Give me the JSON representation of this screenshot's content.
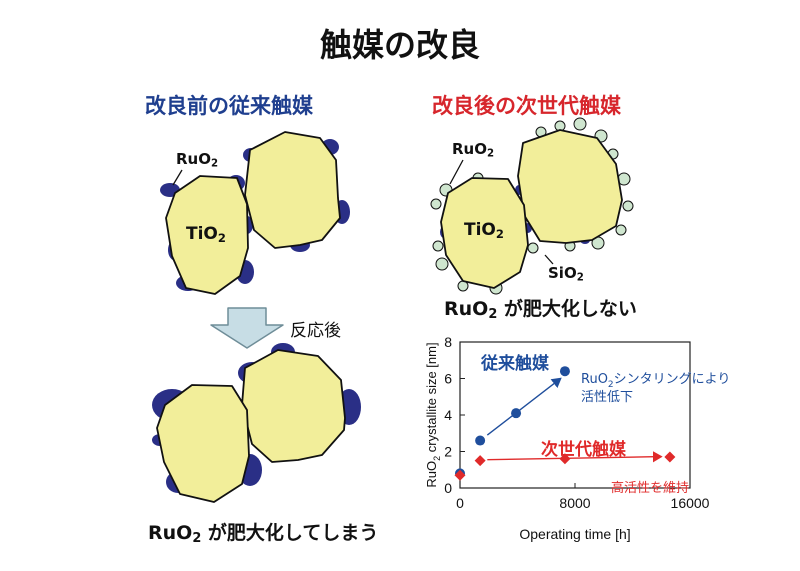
{
  "title": "触媒の改良",
  "left": {
    "heading": "改良前の従来触媒",
    "ruo2_label": "RuO",
    "ruo2_sub": "2",
    "tio2_label": "TiO",
    "tio2_sub": "2",
    "arrow_label": "反応後",
    "caption_main": "RuO",
    "caption_sub": "2",
    "caption_rest": " が肥大化してしまう"
  },
  "right": {
    "heading": "改良後の次世代触媒",
    "ruo2_label": "RuO",
    "ruo2_sub": "2",
    "tio2_label": "TiO",
    "tio2_sub": "2",
    "sio2_label": "SiO",
    "sio2_sub": "2",
    "caption_main": "RuO",
    "caption_sub": "2",
    "caption_rest": " が肥大化しない"
  },
  "colors": {
    "particle_fill": "#f2ee9a",
    "ruo2": "#2a2f86",
    "sio2": "#cfe6cf",
    "arrow_fill": "#c7dde5",
    "blue_series": "#1f4e9c",
    "red_series": "#e02a2a",
    "left_heading": "#1f3f8f",
    "right_heading": "#d7262c"
  },
  "chart_data": {
    "type": "scatter",
    "xlabel": "Operating time [h]",
    "ylabel": "RuO2 crystallite size [nm]",
    "ylabel_main": "RuO",
    "ylabel_sub": "2",
    "ylabel_rest": " crystallite size [nm]",
    "xlim": [
      0,
      16000
    ],
    "ylim": [
      0,
      8
    ],
    "x_ticks": [
      "0",
      "8000",
      "16000"
    ],
    "x_tick_values": [
      0,
      8000,
      16000
    ],
    "y_ticks": [
      "0",
      "2",
      "4",
      "6",
      "8"
    ],
    "y_tick_values": [
      0,
      2,
      4,
      6,
      8
    ],
    "series": [
      {
        "name": "従来触媒",
        "marker": "circle",
        "color": "#1f4e9c",
        "x": [
          0,
          1400,
          3900,
          7300
        ],
        "y": [
          0.8,
          2.6,
          4.1,
          6.4
        ],
        "trend_x": [
          1900,
          7000
        ],
        "trend_y": [
          2.9,
          6.0
        ],
        "annotation_main": "RuO",
        "annotation_sub": "2",
        "annotation_rest": "シンタリングにより",
        "annotation_line2": "活性低下"
      },
      {
        "name": "次世代触媒",
        "marker": "diamond",
        "color": "#e02a2a",
        "x": [
          0,
          1400,
          7300,
          14600
        ],
        "y": [
          0.7,
          1.5,
          1.6,
          1.7
        ],
        "trend_x": [
          1900,
          14000
        ],
        "trend_y": [
          1.55,
          1.72
        ],
        "annotation": "高活性を維持"
      }
    ],
    "grid": false
  }
}
